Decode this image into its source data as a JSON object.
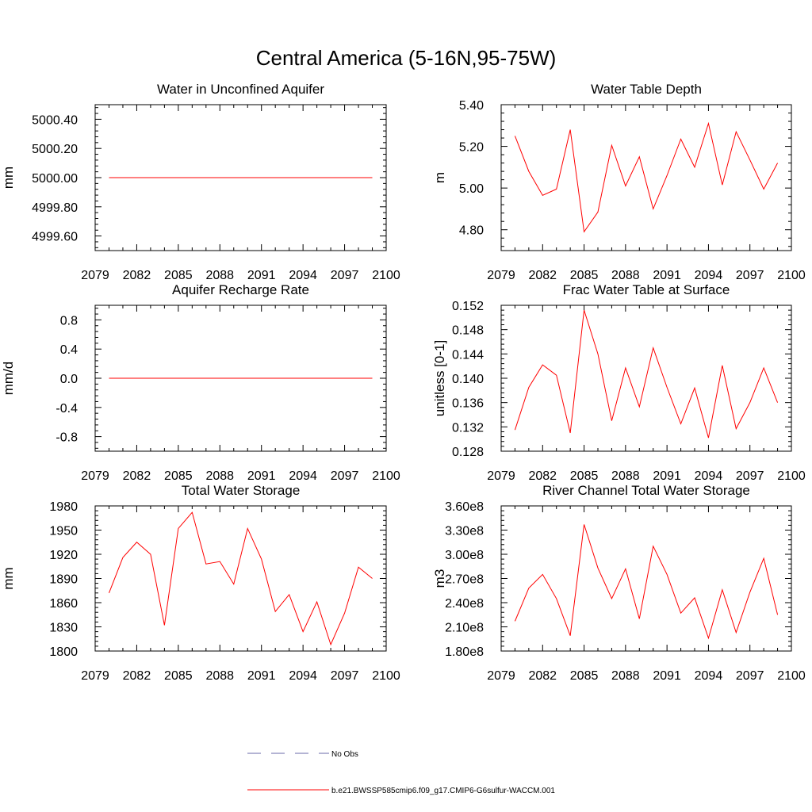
{
  "title": "Central America (5-16N,95-75W)",
  "colors": {
    "model": "#ff0000",
    "obs": "#6a6aa8",
    "axis": "#000000"
  },
  "legend": [
    {
      "label": "No Obs",
      "style": "dashed",
      "color": "#6a6aa8"
    },
    {
      "label": "b.e21.BWSSP585cmip6.f09_g17.CMIP6-G6sulfur-WACCM.001",
      "style": "solid",
      "color": "#ff0000"
    }
  ],
  "chart_data": [
    {
      "type": "line",
      "title": "Water in Unconfined Aquifer",
      "ylabel": "mm",
      "xlim": [
        2079,
        2100
      ],
      "xticks": [
        2079,
        2082,
        2085,
        2088,
        2091,
        2094,
        2097,
        2100
      ],
      "ylim": [
        4999.5,
        5000.5
      ],
      "yticks": [
        4999.6,
        4999.8,
        5000.0,
        5000.2,
        5000.4
      ],
      "ytick_labels": [
        "4999.60",
        "4999.80",
        "5000.00",
        "5000.20",
        "5000.40"
      ],
      "x": [
        2080,
        2081,
        2082,
        2083,
        2084,
        2085,
        2086,
        2087,
        2088,
        2089,
        2090,
        2091,
        2092,
        2093,
        2094,
        2095,
        2096,
        2097,
        2098,
        2099
      ],
      "series": [
        {
          "values": [
            5000,
            5000,
            5000,
            5000,
            5000,
            5000,
            5000,
            5000,
            5000,
            5000,
            5000,
            5000,
            5000,
            5000,
            5000,
            5000,
            5000,
            5000,
            5000,
            5000
          ]
        }
      ]
    },
    {
      "type": "line",
      "title": "Water Table Depth",
      "ylabel": "m",
      "xlim": [
        2079,
        2100
      ],
      "xticks": [
        2079,
        2082,
        2085,
        2088,
        2091,
        2094,
        2097,
        2100
      ],
      "ylim": [
        4.7,
        5.4
      ],
      "yticks": [
        4.8,
        5.0,
        5.2,
        5.4
      ],
      "ytick_labels": [
        "4.80",
        "5.00",
        "5.20",
        "5.40"
      ],
      "x": [
        2080,
        2081,
        2082,
        2083,
        2084,
        2085,
        2086,
        2087,
        2088,
        2089,
        2090,
        2091,
        2092,
        2093,
        2094,
        2095,
        2096,
        2097,
        2098,
        2099
      ],
      "series": [
        {
          "values": [
            5.25,
            5.08,
            4.965,
            4.995,
            5.28,
            4.79,
            4.885,
            5.205,
            5.01,
            5.15,
            4.9,
            5.06,
            5.235,
            5.1,
            5.31,
            5.015,
            5.27,
            5.135,
            4.995,
            5.12
          ]
        }
      ]
    },
    {
      "type": "line",
      "title": "Aquifer Recharge Rate",
      "ylabel": "mm/d",
      "xlim": [
        2079,
        2100
      ],
      "xticks": [
        2079,
        2082,
        2085,
        2088,
        2091,
        2094,
        2097,
        2100
      ],
      "ylim": [
        -1.0,
        1.0
      ],
      "yticks": [
        -0.8,
        -0.4,
        0.0,
        0.4,
        0.8
      ],
      "ytick_labels": [
        "-0.8",
        "-0.4",
        "0.0",
        "0.4",
        "0.8"
      ],
      "x": [
        2080,
        2081,
        2082,
        2083,
        2084,
        2085,
        2086,
        2087,
        2088,
        2089,
        2090,
        2091,
        2092,
        2093,
        2094,
        2095,
        2096,
        2097,
        2098,
        2099
      ],
      "series": [
        {
          "values": [
            0,
            0,
            0,
            0,
            0,
            0,
            0,
            0,
            0,
            0,
            0,
            0,
            0,
            0,
            0,
            0,
            0,
            0,
            0,
            0
          ]
        }
      ]
    },
    {
      "type": "line",
      "title": "Frac Water Table at Surface",
      "ylabel": "unitless [0-1]",
      "xlim": [
        2079,
        2100
      ],
      "xticks": [
        2079,
        2082,
        2085,
        2088,
        2091,
        2094,
        2097,
        2100
      ],
      "ylim": [
        0.128,
        0.152
      ],
      "yticks": [
        0.128,
        0.132,
        0.136,
        0.14,
        0.144,
        0.148,
        0.152
      ],
      "ytick_labels": [
        "0.128",
        "0.132",
        "0.136",
        "0.140",
        "0.144",
        "0.148",
        "0.152"
      ],
      "x": [
        2080,
        2081,
        2082,
        2083,
        2084,
        2085,
        2086,
        2087,
        2088,
        2089,
        2090,
        2091,
        2092,
        2093,
        2094,
        2095,
        2096,
        2097,
        2098,
        2099
      ],
      "series": [
        {
          "values": [
            0.1315,
            0.1385,
            0.1422,
            0.1405,
            0.131,
            0.1512,
            0.144,
            0.133,
            0.1417,
            0.1353,
            0.145,
            0.1385,
            0.1325,
            0.1384,
            0.1302,
            0.1421,
            0.1317,
            0.136,
            0.1417,
            0.136
          ]
        }
      ]
    },
    {
      "type": "line",
      "title": "Total Water Storage",
      "ylabel": "mm",
      "xlim": [
        2079,
        2100
      ],
      "xticks": [
        2079,
        2082,
        2085,
        2088,
        2091,
        2094,
        2097,
        2100
      ],
      "ylim": [
        1800,
        1980
      ],
      "yticks": [
        1800,
        1830,
        1860,
        1890,
        1920,
        1950,
        1980
      ],
      "ytick_labels": [
        "1800",
        "1830",
        "1860",
        "1890",
        "1920",
        "1950",
        "1980"
      ],
      "x": [
        2080,
        2081,
        2082,
        2083,
        2084,
        2085,
        2086,
        2087,
        2088,
        2089,
        2090,
        2091,
        2092,
        2093,
        2094,
        2095,
        2096,
        2097,
        2098,
        2099
      ],
      "series": [
        {
          "values": [
            1872,
            1916,
            1935,
            1920,
            1832,
            1952,
            1972,
            1908,
            1911,
            1883,
            1952,
            1914,
            1849,
            1870,
            1824,
            1861,
            1808,
            1847,
            1904,
            1890
          ]
        }
      ]
    },
    {
      "type": "line",
      "title": "River Channel Total Water Storage",
      "ylabel": "m3",
      "xlim": [
        2079,
        2100
      ],
      "xticks": [
        2079,
        2082,
        2085,
        2088,
        2091,
        2094,
        2097,
        2100
      ],
      "ylim": [
        180000000,
        360000000
      ],
      "yticks": [
        180000000,
        210000000,
        240000000,
        270000000,
        300000000,
        330000000,
        360000000
      ],
      "ytick_labels": [
        "1.80e8",
        "2.10e8",
        "2.40e8",
        "2.70e8",
        "3.00e8",
        "3.30e8",
        "3.60e8"
      ],
      "x": [
        2080,
        2081,
        2082,
        2083,
        2084,
        2085,
        2086,
        2087,
        2088,
        2089,
        2090,
        2091,
        2092,
        2093,
        2094,
        2095,
        2096,
        2097,
        2098,
        2099
      ],
      "series": [
        {
          "values": [
            217000000,
            258000000,
            275000000,
            245000000,
            199000000,
            337000000,
            283000000,
            245000000,
            282000000,
            220000000,
            310000000,
            275000000,
            227000000,
            246000000,
            196000000,
            256000000,
            203000000,
            253000000,
            295000000,
            225000000
          ]
        }
      ]
    }
  ]
}
